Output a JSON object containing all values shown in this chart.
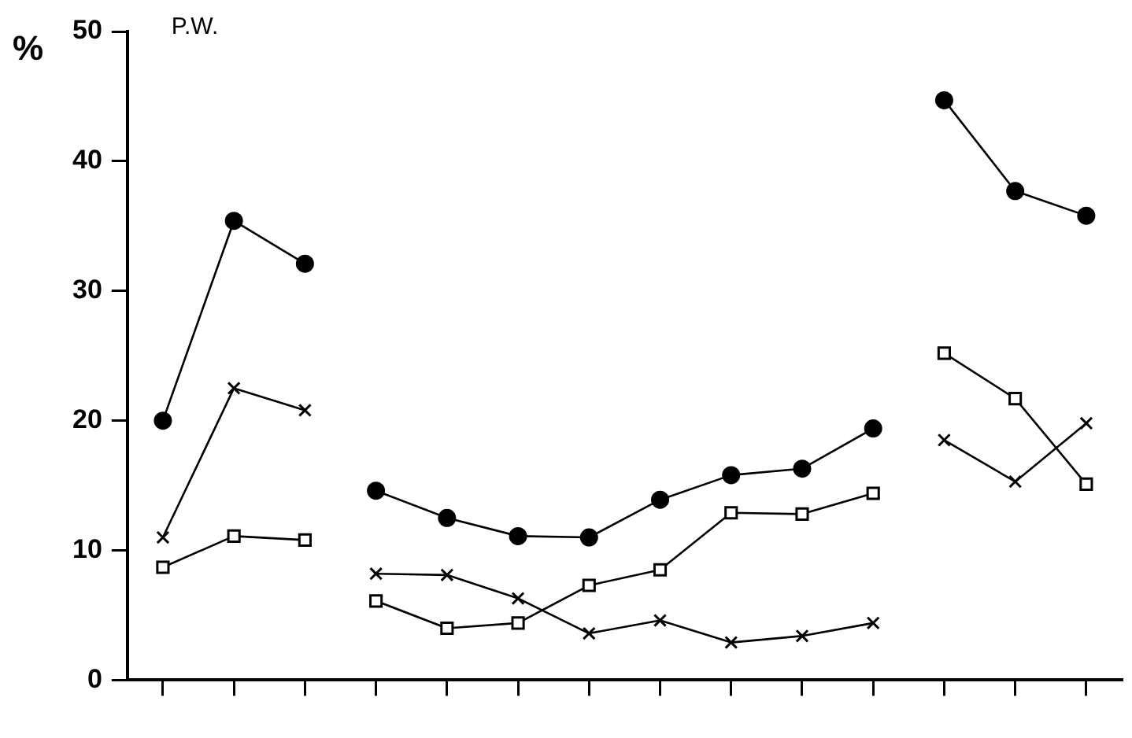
{
  "chart_data": {
    "type": "line",
    "ylabel": "%",
    "annotations": [
      "P.W."
    ],
    "categories": [
      null,
      null,
      null,
      null,
      null,
      null,
      null,
      null,
      null,
      null,
      null,
      null,
      null,
      null
    ],
    "ylim": [
      0,
      50
    ],
    "yticks": [
      0,
      10,
      20,
      30,
      40,
      50
    ],
    "grid": false,
    "legend": false,
    "series": [
      {
        "color": "#000000",
        "marker": "circle",
        "values": [
          20,
          35.4,
          32.1,
          null,
          null,
          null,
          null,
          null,
          null,
          null,
          null,
          null,
          null,
          null
        ]
      },
      {
        "color": "#000000",
        "marker": "circle",
        "values": [
          null,
          null,
          null,
          14.6,
          12.5,
          11.1,
          11.0,
          13.9,
          15.8,
          16.3,
          19.4,
          null,
          null,
          null
        ]
      },
      {
        "color": "#000000",
        "marker": "circle",
        "values": [
          null,
          null,
          null,
          null,
          null,
          null,
          null,
          null,
          null,
          null,
          null,
          44.7,
          37.7,
          35.8
        ]
      },
      {
        "color": "#000000",
        "marker": "cross",
        "values": [
          11,
          22.5,
          20.8,
          null,
          null,
          null,
          null,
          null,
          null,
          null,
          null,
          null,
          null,
          null
        ]
      },
      {
        "color": "#000000",
        "marker": "cross",
        "values": [
          null,
          null,
          null,
          8.2,
          8.1,
          6.3,
          3.6,
          4.6,
          2.9,
          3.4,
          4.4,
          null,
          null,
          null
        ]
      },
      {
        "color": "#000000",
        "marker": "cross",
        "values": [
          null,
          null,
          null,
          null,
          null,
          null,
          null,
          null,
          null,
          null,
          null,
          18.5,
          15.3,
          19.8
        ]
      },
      {
        "color": "#000000",
        "marker": "square",
        "values": [
          8.7,
          11.1,
          10.8,
          null,
          null,
          null,
          null,
          null,
          null,
          null,
          null,
          null,
          null,
          null
        ]
      },
      {
        "color": "#000000",
        "marker": "square",
        "values": [
          null,
          null,
          null,
          6.1,
          4.0,
          4.4,
          7.3,
          8.5,
          12.9,
          12.8,
          14.4,
          null,
          null,
          null
        ]
      },
      {
        "color": "#000000",
        "marker": "square",
        "values": [
          null,
          null,
          null,
          null,
          null,
          null,
          null,
          null,
          null,
          null,
          null,
          25.2,
          21.7,
          15.1
        ]
      }
    ]
  }
}
